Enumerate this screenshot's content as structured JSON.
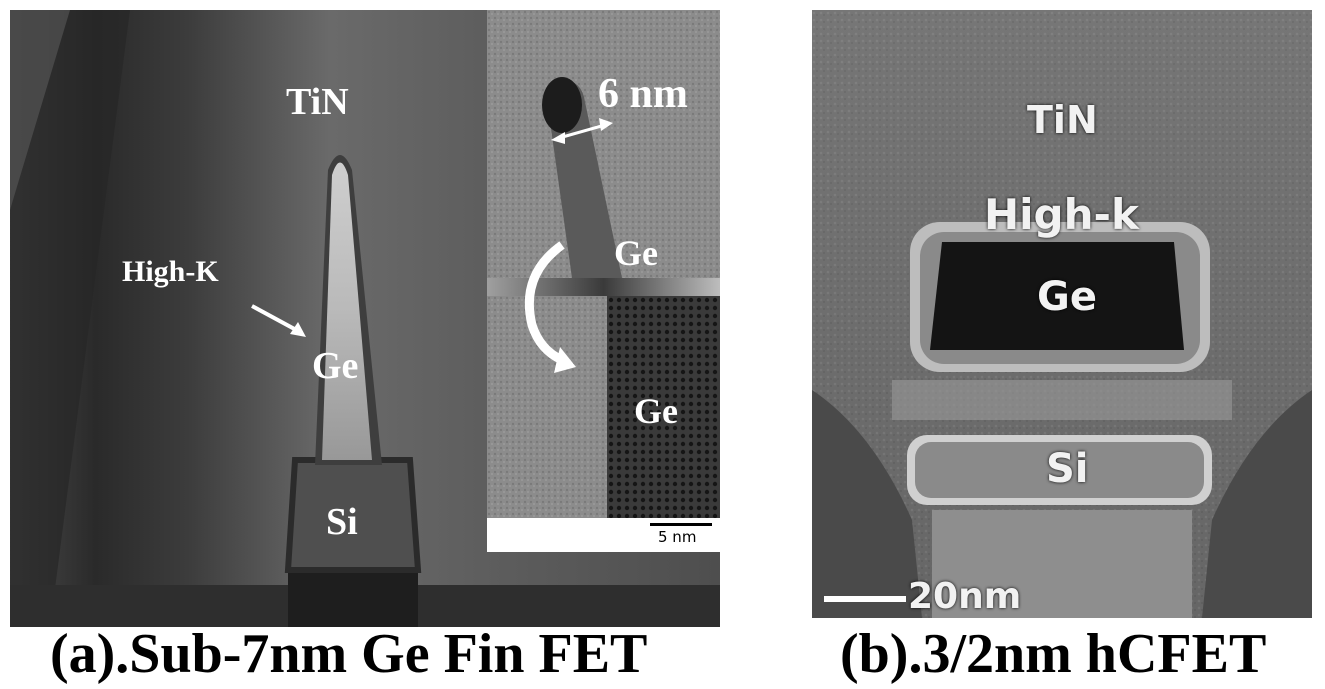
{
  "panel_a": {
    "labels": {
      "tin": "TiN",
      "high_k": "High-K",
      "ge_main": "Ge",
      "si": "Si",
      "inset_width": "6 nm",
      "inset_ge_top": "Ge",
      "inset_ge_bottom": "Ge",
      "scale_bar": "5 nm"
    },
    "caption": "(a).Sub-7nm Ge Fin FET"
  },
  "panel_b": {
    "labels": {
      "tin": "TiN",
      "high_k": "High-k",
      "ge": "Ge",
      "si": "Si",
      "scale_bar": "20nm"
    },
    "caption": "(b).3/2nm hCFET"
  }
}
